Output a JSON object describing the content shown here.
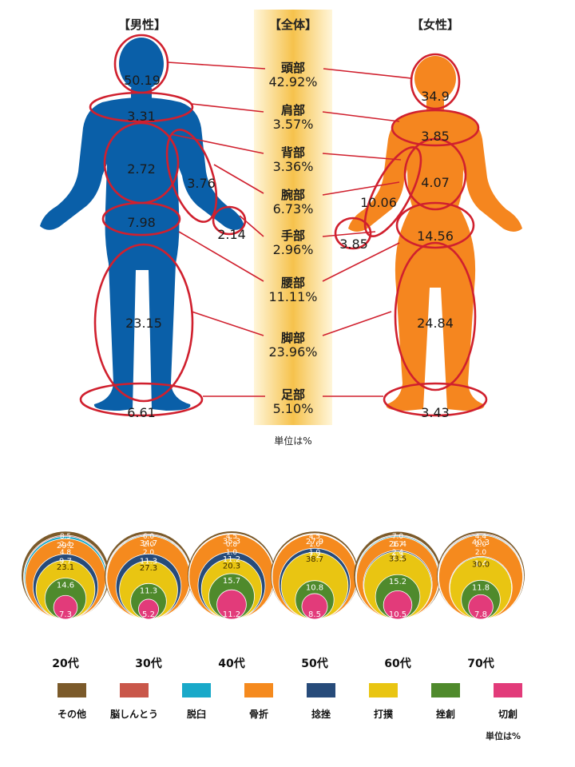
{
  "colors": {
    "male_figure": "#0A5FA8",
    "female_figure": "#F5861F",
    "ring": "#D0202E",
    "center_band": "#F7C84A",
    "categories": [
      "#7B5A2A",
      "#C9574A",
      "#19A9C9",
      "#F58A1E",
      "#274B7A",
      "#E9C512",
      "#4F8A2C",
      "#E23B7A"
    ]
  },
  "body_chart": {
    "header_male": "【男性】",
    "header_total": "【全体】",
    "header_female": "【女性】",
    "unit": "単位は%",
    "parts": [
      {
        "name": "頭部",
        "total": "42.92%",
        "male": "50.19",
        "female": "34.9"
      },
      {
        "name": "肩部",
        "total": "3.57%",
        "male": "3.31",
        "female": "3.85"
      },
      {
        "name": "背部",
        "total": "3.36%",
        "male": "2.72",
        "female": "4.07"
      },
      {
        "name": "腕部",
        "total": "6.73%",
        "male": "3.76",
        "female": "10.06"
      },
      {
        "name": "手部",
        "total": "2.96%",
        "male": "2.14",
        "female": "3.85"
      },
      {
        "name": "腰部",
        "total": "11.11%",
        "male": "7.98",
        "female": "14.56"
      },
      {
        "name": "脚部",
        "total": "23.96%",
        "male": "23.15",
        "female": "24.84"
      },
      {
        "name": "足部",
        "total": "5.10%",
        "male": "6.61",
        "female": "3.43"
      }
    ]
  },
  "chart_data": [
    {
      "type": "table",
      "title": "",
      "columns": [
        "男性",
        "全体",
        "女性"
      ],
      "categories": [
        "頭部",
        "肩部",
        "背部",
        "腕部",
        "手部",
        "腰部",
        "脚部",
        "足部"
      ],
      "series": [
        {
          "name": "男性",
          "values": [
            50.19,
            3.31,
            2.72,
            3.76,
            2.14,
            7.98,
            23.15,
            6.61
          ]
        },
        {
          "name": "全体",
          "values": [
            42.92,
            3.57,
            3.36,
            6.73,
            2.96,
            11.11,
            23.96,
            5.1
          ]
        },
        {
          "name": "女性",
          "values": [
            34.9,
            3.85,
            4.07,
            10.06,
            3.85,
            14.56,
            24.84,
            3.43
          ]
        }
      ],
      "unit": "単位は%"
    },
    {
      "type": "pie",
      "title": "",
      "unit": "単位は%",
      "categories": [
        "その他",
        "脳しんとう",
        "脱臼",
        "骨折",
        "捻挫",
        "打撲",
        "挫創",
        "切創"
      ],
      "groups": [
        {
          "label": "20代",
          "values": [
            8.5,
            2.4,
            4.8,
            29.2,
            9.7,
            23.1,
            14.6,
            7.3
          ]
        },
        {
          "label": "30代",
          "values": [
            6.0,
            2.0,
            2.0,
            34.7,
            11.3,
            27.3,
            11.3,
            5.2
          ]
        },
        {
          "label": "40代",
          "values": [
            4.5,
            0.8,
            1.0,
            35.3,
            11.2,
            20.3,
            15.7,
            11.2
          ]
        },
        {
          "label": "50代",
          "values": [
            4.5,
            1.0,
            1.0,
            27.9,
            7.2,
            38.7,
            10.8,
            8.5
          ]
        },
        {
          "label": "60代",
          "values": [
            7.0,
            1.7,
            2.4,
            26.4,
            2.3,
            33.5,
            15.2,
            10.5
          ]
        },
        {
          "label": "70代",
          "values": [
            4.4,
            2.0,
            2.0,
            40.3,
            1.4,
            30.0,
            11.8,
            7.8
          ]
        }
      ]
    }
  ]
}
